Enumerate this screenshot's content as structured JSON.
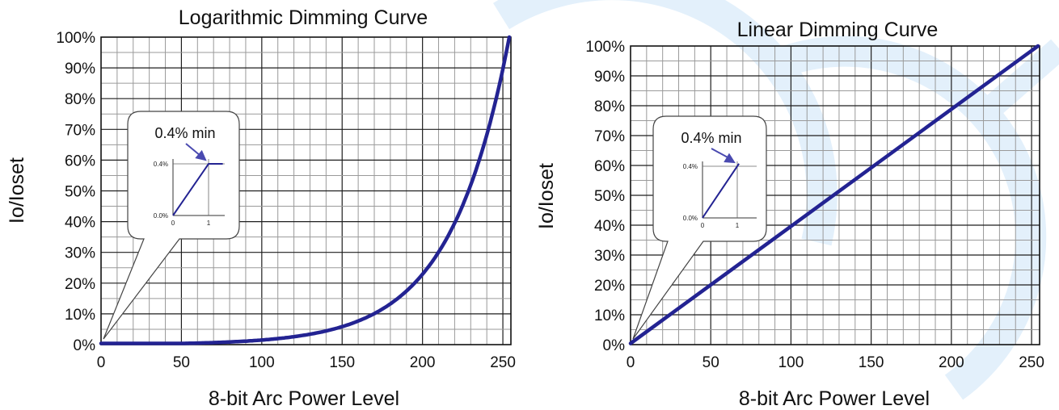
{
  "chart_data": [
    {
      "type": "line",
      "title": "Logarithmic Dimming Curve",
      "xlabel": "8-bit Arc Power Level",
      "ylabel": "Io/Ioset",
      "xlim": [
        0,
        255
      ],
      "ylim": [
        0,
        100
      ],
      "x_ticks": [
        0,
        50,
        100,
        150,
        200,
        250
      ],
      "y_ticks": [
        0,
        10,
        20,
        30,
        40,
        50,
        60,
        70,
        80,
        90,
        100
      ],
      "x_tick_labels": [
        "0",
        "50",
        "100",
        "150",
        "200",
        "250"
      ],
      "y_tick_labels": [
        "0%",
        "10%",
        "20%",
        "30%",
        "40%",
        "50%",
        "60%",
        "70%",
        "80%",
        "90%",
        "100%"
      ],
      "grid": true,
      "curve": "logarithmic",
      "series": [
        {
          "x": [
            0,
            1,
            25,
            50,
            75,
            100,
            125,
            150,
            175,
            200,
            225,
            254
          ],
          "y": [
            0.4,
            0.4,
            0.4,
            0.4,
            0.9,
            1.7,
            3.4,
            6.5,
            12.5,
            23.6,
            45.0,
            100
          ]
        }
      ],
      "inset": {
        "label": "0.4% min",
        "x_tick_labels": [
          "0",
          "1"
        ],
        "y_tick_labels": [
          "0.0%",
          "0.4%"
        ],
        "points": [
          [
            0,
            0.0
          ],
          [
            1,
            0.4
          ],
          [
            1.4,
            0.4
          ]
        ]
      }
    },
    {
      "type": "line",
      "title": "Linear Dimming Curve",
      "xlabel": "8-bit Arc Power Level",
      "ylabel": "Io/Ioset",
      "xlim": [
        0,
        255
      ],
      "ylim": [
        0,
        100
      ],
      "x_ticks": [
        0,
        50,
        100,
        150,
        200,
        250
      ],
      "y_ticks": [
        0,
        10,
        20,
        30,
        40,
        50,
        60,
        70,
        80,
        90,
        100
      ],
      "x_tick_labels": [
        "0",
        "50",
        "100",
        "150",
        "200",
        "250"
      ],
      "y_tick_labels": [
        "0%",
        "10%",
        "20%",
        "30%",
        "40%",
        "50%",
        "60%",
        "70%",
        "80%",
        "90%",
        "100%"
      ],
      "grid": true,
      "curve": "linear",
      "series": [
        {
          "x": [
            0,
            254
          ],
          "y": [
            0.4,
            100
          ]
        }
      ],
      "inset": {
        "label": "0.4% min",
        "x_tick_labels": [
          "0",
          "1"
        ],
        "y_tick_labels": [
          "0.0%",
          "0.4%"
        ],
        "points": [
          [
            0,
            0.0
          ],
          [
            1.05,
            0.42
          ]
        ]
      }
    }
  ]
}
